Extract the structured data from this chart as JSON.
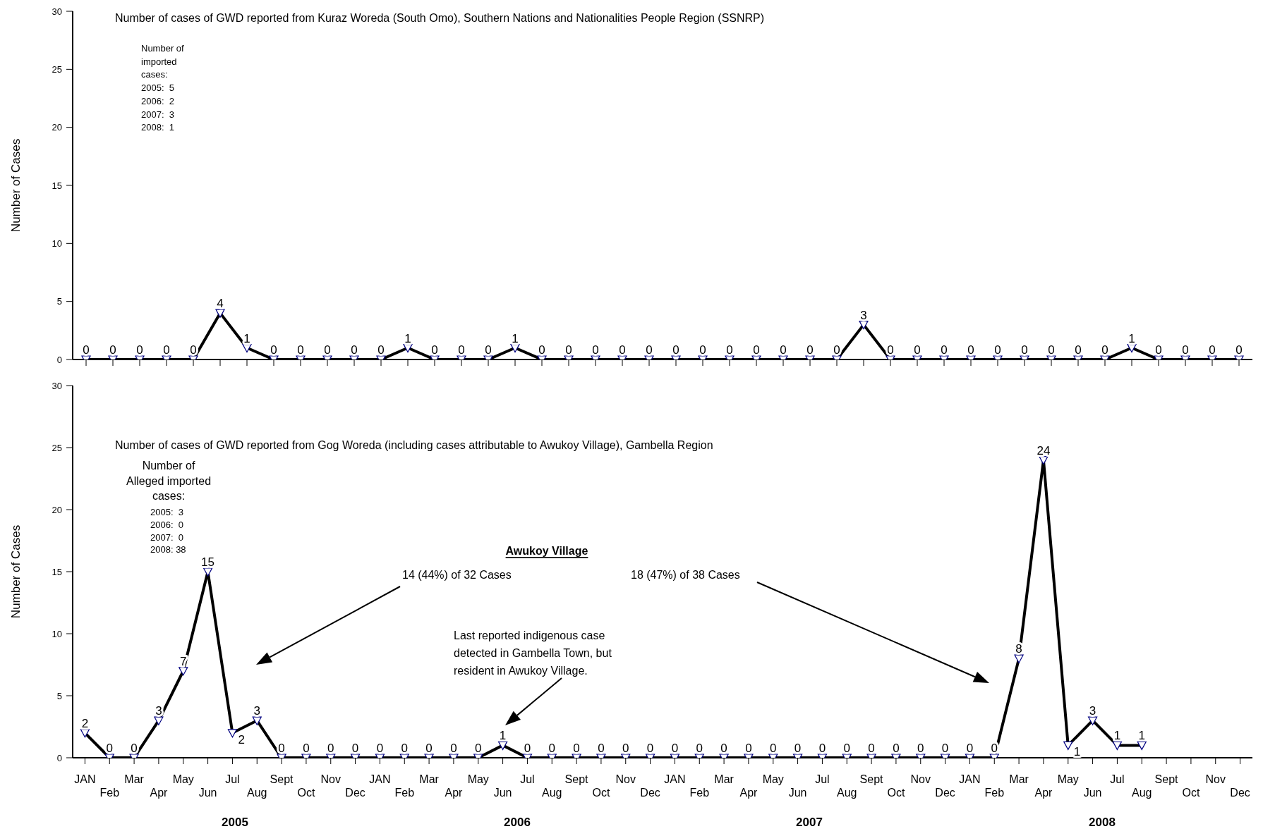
{
  "chart_data": [
    {
      "type": "line",
      "title": "Number of cases of GWD reported from Kuraz Woreda (South Omo), Southern Nations and Nationalities People Region (SSNRP)",
      "ylabel": "Number of Cases",
      "categories": [
        null,
        null,
        null,
        null,
        null,
        null,
        null,
        null,
        null,
        null,
        null,
        null,
        null,
        null,
        null,
        null,
        null,
        null,
        null,
        null,
        null,
        null,
        null,
        null,
        null,
        null,
        null,
        null,
        null,
        null,
        null,
        null,
        null,
        null,
        null,
        null,
        null,
        null,
        null,
        null,
        null,
        null,
        null,
        null
      ],
      "series": [
        {
          "color": "#000000",
          "values": [
            0,
            0,
            0,
            0,
            0,
            4,
            1,
            0,
            0,
            0,
            0,
            0,
            1,
            0,
            0,
            0,
            1,
            0,
            0,
            0,
            0,
            0,
            0,
            0,
            0,
            0,
            0,
            0,
            0,
            3,
            0,
            0,
            0,
            0,
            0,
            0,
            0,
            0,
            0,
            1,
            0,
            0,
            0,
            0
          ]
        }
      ],
      "ylim": [
        0,
        30
      ],
      "yticks": [
        0,
        5,
        10,
        15,
        20,
        25,
        30
      ],
      "tick_labels": "y",
      "data_labels": true,
      "marker": "triangle",
      "line_style": "solid",
      "annotations": [
        "Number of\nimported\ncases:\n2005:  5\n2006:  2\n2007:  3\n2008:  1"
      ]
    },
    {
      "type": "line",
      "title": "Number of cases of GWD reported from Gog Woreda (including cases attributable to Awukoy Village), Gambella Region",
      "ylabel": "Number of Cases",
      "categories": [
        "JAN",
        "Feb",
        "Mar",
        "Apr",
        "May",
        "Jun",
        "Jul",
        "Aug",
        "Sept",
        "Oct",
        "Nov",
        "Dec",
        "JAN",
        "Feb",
        "Mar",
        "Apr",
        "May",
        "Jun",
        "Jul",
        "Aug",
        "Sept",
        "Oct",
        "Nov",
        "Dec",
        "JAN",
        "Feb",
        "Mar",
        "Apr",
        "May",
        "Jun",
        "Jul",
        "Aug",
        "Sept",
        "Oct",
        "Nov",
        "Dec",
        "JAN",
        "Feb",
        "Mar",
        "Apr",
        "May",
        "Jun",
        "Jul",
        "Aug",
        "Sept",
        "Oct",
        "Nov",
        "Dec"
      ],
      "series": [
        {
          "color": "#000000",
          "values": [
            2,
            0,
            0,
            3,
            7,
            15,
            2,
            3,
            0,
            0,
            0,
            0,
            0,
            0,
            0,
            0,
            0,
            1,
            0,
            0,
            0,
            0,
            0,
            0,
            0,
            0,
            0,
            0,
            0,
            0,
            0,
            0,
            0,
            0,
            0,
            0,
            0,
            0,
            8,
            24,
            1,
            3,
            1,
            1,
            null,
            null,
            null,
            null
          ]
        }
      ],
      "ylim": [
        0,
        30
      ],
      "yticks": [
        0,
        5,
        10,
        15,
        20,
        25,
        30
      ],
      "data_labels": true,
      "marker": "triangle",
      "line_style": "solid",
      "annotations": [
        "Number of\nAlleged imported\ncases:",
        "2005:  3\n2006:  0\n2007:  0\n2008: 38",
        "Awukoy Village",
        "14 (44%) of 32 Cases",
        "18 (47%) of 38 Cases",
        "Last reported indigenous case\ndetected in Gambella Town, but\nresident in Awukoy Village.",
        "2005",
        "2006",
        "2007",
        "2008"
      ]
    }
  ]
}
